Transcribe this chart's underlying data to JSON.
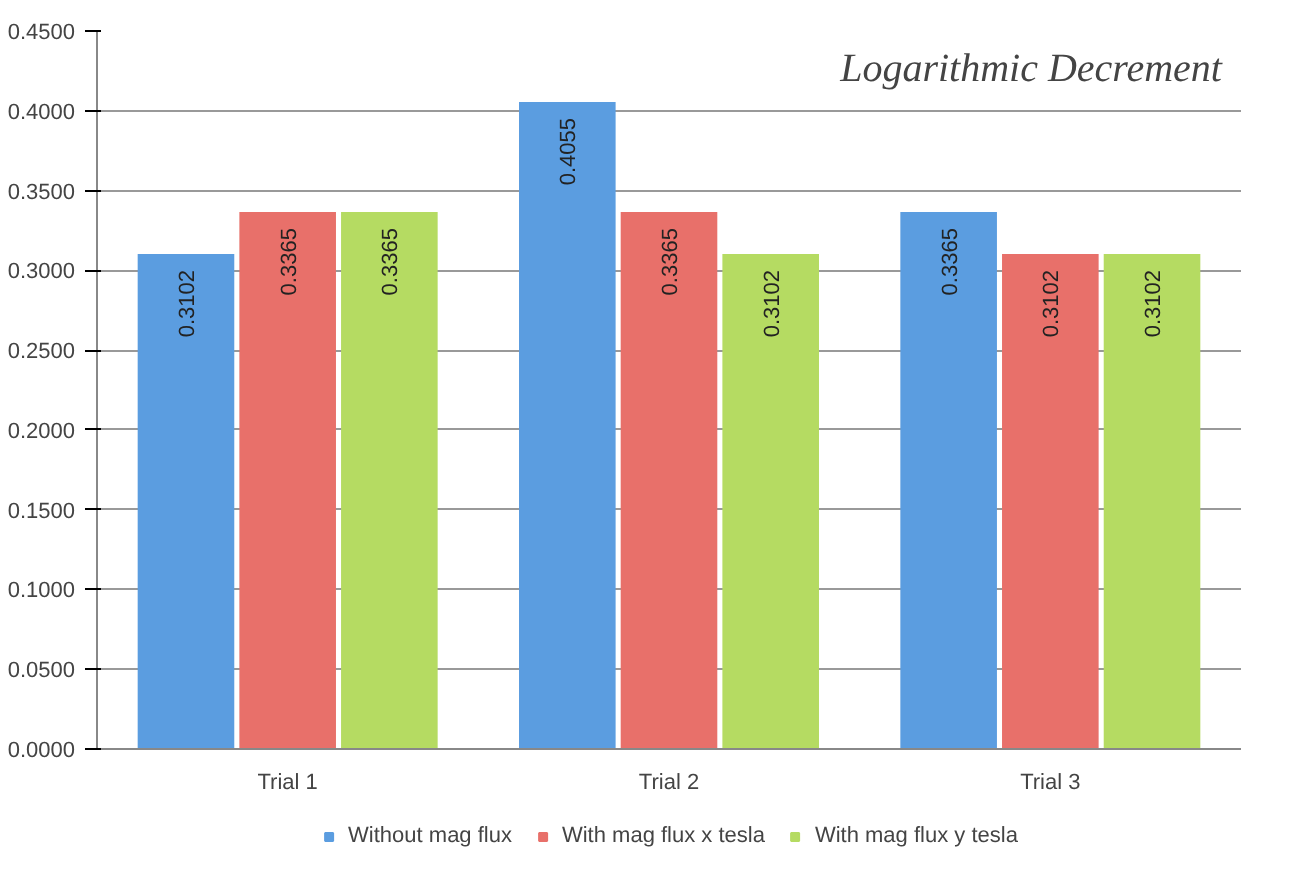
{
  "chart_data": {
    "type": "bar",
    "title": "Logarithmic Decrement",
    "categories": [
      "Trial 1",
      "Trial 2",
      "Trial 3"
    ],
    "series": [
      {
        "name": "Without mag flux",
        "color": "#5b9de0",
        "values": [
          0.3102,
          0.4055,
          0.3365
        ]
      },
      {
        "name": "With mag flux x tesla",
        "color": "#e8706a",
        "values": [
          0.3365,
          0.3365,
          0.3102
        ]
      },
      {
        "name": "With mag flux y tesla",
        "color": "#b5db62",
        "values": [
          0.3365,
          0.3102,
          0.3102
        ]
      }
    ],
    "ylim": [
      0,
      0.45
    ],
    "yticks": [
      {
        "value": 0,
        "label": "0.0000"
      },
      {
        "value": 0.05,
        "label": "0.0500"
      },
      {
        "value": 0.1,
        "label": "0.1000"
      },
      {
        "value": 0.15,
        "label": "0.1500"
      },
      {
        "value": 0.2,
        "label": "0.2000"
      },
      {
        "value": 0.25,
        "label": "0.2500"
      },
      {
        "value": 0.3,
        "label": "0.3000"
      },
      {
        "value": 0.35,
        "label": "0.3500"
      },
      {
        "value": 0.4,
        "label": "0.4000"
      },
      {
        "value": 0.45,
        "label": "0.4500"
      }
    ],
    "grid": "y",
    "legend": "bottom",
    "data_labels": true
  }
}
